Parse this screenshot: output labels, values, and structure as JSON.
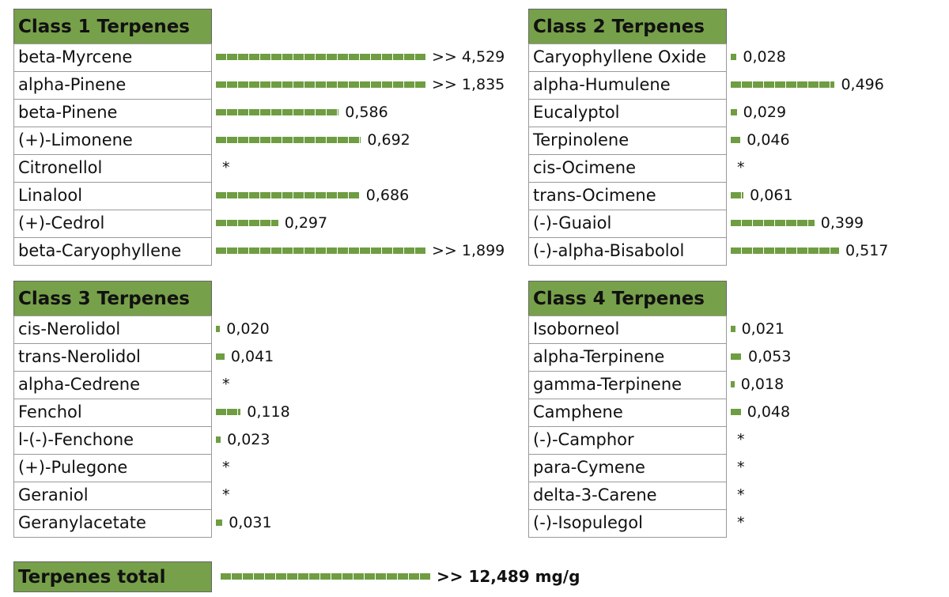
{
  "tables": [
    {
      "title": "Class 1 Terpenes",
      "rows": [
        {
          "name": "beta-Myrcene",
          "value": 4.529,
          "label": ">> 4,529"
        },
        {
          "name": "alpha-Pinene",
          "value": 1.835,
          "label": ">> 1,835"
        },
        {
          "name": "beta-Pinene",
          "value": 0.586,
          "label": "0,586"
        },
        {
          "name": "(+)-Limonene",
          "value": 0.692,
          "label": "0,692"
        },
        {
          "name": "Citronellol",
          "value": null,
          "label": "*"
        },
        {
          "name": "Linalool",
          "value": 0.686,
          "label": "0,686"
        },
        {
          "name": "(+)-Cedrol",
          "value": 0.297,
          "label": "0,297"
        },
        {
          "name": "beta-Caryophyllene",
          "value": 1.899,
          "label": ">> 1,899"
        }
      ]
    },
    {
      "title": "Class 2 Terpenes",
      "rows": [
        {
          "name": "Caryophyllene Oxide",
          "value": 0.028,
          "label": "0,028"
        },
        {
          "name": "alpha-Humulene",
          "value": 0.496,
          "label": "0,496"
        },
        {
          "name": "Eucalyptol",
          "value": 0.029,
          "label": "0,029"
        },
        {
          "name": "Terpinolene",
          "value": 0.046,
          "label": "0,046"
        },
        {
          "name": "cis-Ocimene",
          "value": null,
          "label": "*"
        },
        {
          "name": "trans-Ocimene",
          "value": 0.061,
          "label": "0,061"
        },
        {
          "name": "(-)-Guaiol",
          "value": 0.399,
          "label": "0,399"
        },
        {
          "name": "(-)-alpha-Bisabolol",
          "value": 0.517,
          "label": "0,517"
        }
      ]
    },
    {
      "title": "Class 3 Terpenes",
      "rows": [
        {
          "name": "cis-Nerolidol",
          "value": 0.02,
          "label": "0,020"
        },
        {
          "name": "trans-Nerolidol",
          "value": 0.041,
          "label": "0,041"
        },
        {
          "name": "alpha-Cedrene",
          "value": null,
          "label": "*"
        },
        {
          "name": "Fenchol",
          "value": 0.118,
          "label": "0,118"
        },
        {
          "name": "l-(-)-Fenchone",
          "value": 0.023,
          "label": "0,023"
        },
        {
          "name": "(+)-Pulegone",
          "value": null,
          "label": "*"
        },
        {
          "name": "Geraniol",
          "value": null,
          "label": "*"
        },
        {
          "name": "Geranylacetate",
          "value": 0.031,
          "label": "0,031"
        }
      ]
    },
    {
      "title": "Class 4 Terpenes",
      "rows": [
        {
          "name": "Isoborneol",
          "value": 0.021,
          "label": "0,021"
        },
        {
          "name": "alpha-Terpinene",
          "value": 0.053,
          "label": "0,053"
        },
        {
          "name": "gamma-Terpinene",
          "value": 0.018,
          "label": "0,018"
        },
        {
          "name": "Camphene",
          "value": 0.048,
          "label": "0,048"
        },
        {
          "name": "(-)-Camphor",
          "value": null,
          "label": "*"
        },
        {
          "name": "para-Cymene",
          "value": null,
          "label": "*"
        },
        {
          "name": "delta-3-Carene",
          "value": null,
          "label": "*"
        },
        {
          "name": "(-)-Isopulegol",
          "value": null,
          "label": "*"
        }
      ]
    }
  ],
  "total": {
    "title": "Terpenes total",
    "value": 12.489,
    "label": ">> 12,489 mg/g"
  },
  "xlim": [
    0,
    1
  ],
  "bar_color": "#6f9d42",
  "header_color": "#77a04a"
}
